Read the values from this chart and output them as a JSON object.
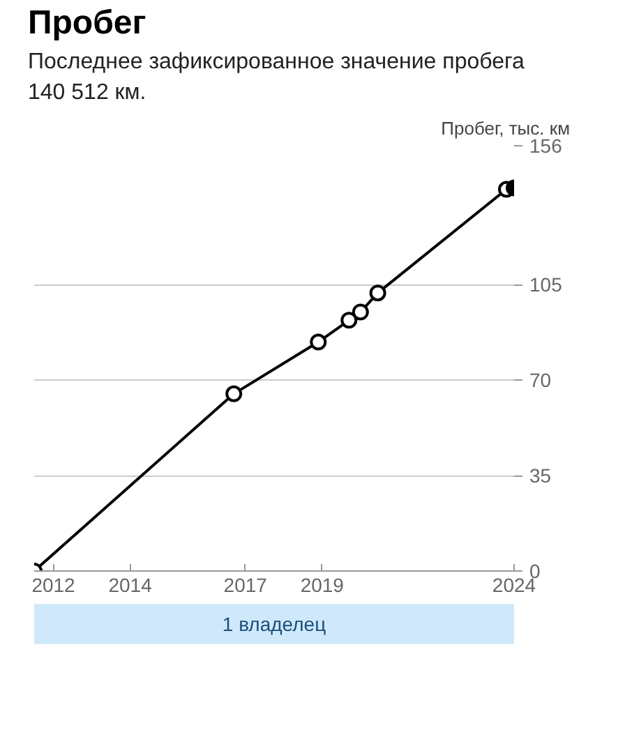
{
  "chart_data": {
    "type": "line",
    "title": "Пробег",
    "subtitle": "Последнее зафиксированное значение пробега 140 512 км.",
    "ylabel": "Пробег, тыс. км",
    "xlim": [
      2011.5,
      2024
    ],
    "xticks": [
      2012,
      2014,
      2017,
      2019,
      2024
    ],
    "ylim": [
      0,
      156
    ],
    "yticks": [
      0,
      35,
      70,
      105,
      156
    ],
    "grid": "y",
    "marker": "circle",
    "line_style": "solid",
    "series": [
      {
        "color": "#000000",
        "x": [
          2011.5,
          2016.7,
          2018.9,
          2019.7,
          2020.0,
          2020.45,
          2023.8
        ],
        "values": [
          0,
          65,
          84,
          92,
          95,
          102,
          140
        ]
      },
      {
        "type": "scatter",
        "color": "#000000",
        "x": [
          2024
        ],
        "values": [
          140.5
        ]
      }
    ],
    "annotations": [
      "1 владелец"
    ]
  }
}
